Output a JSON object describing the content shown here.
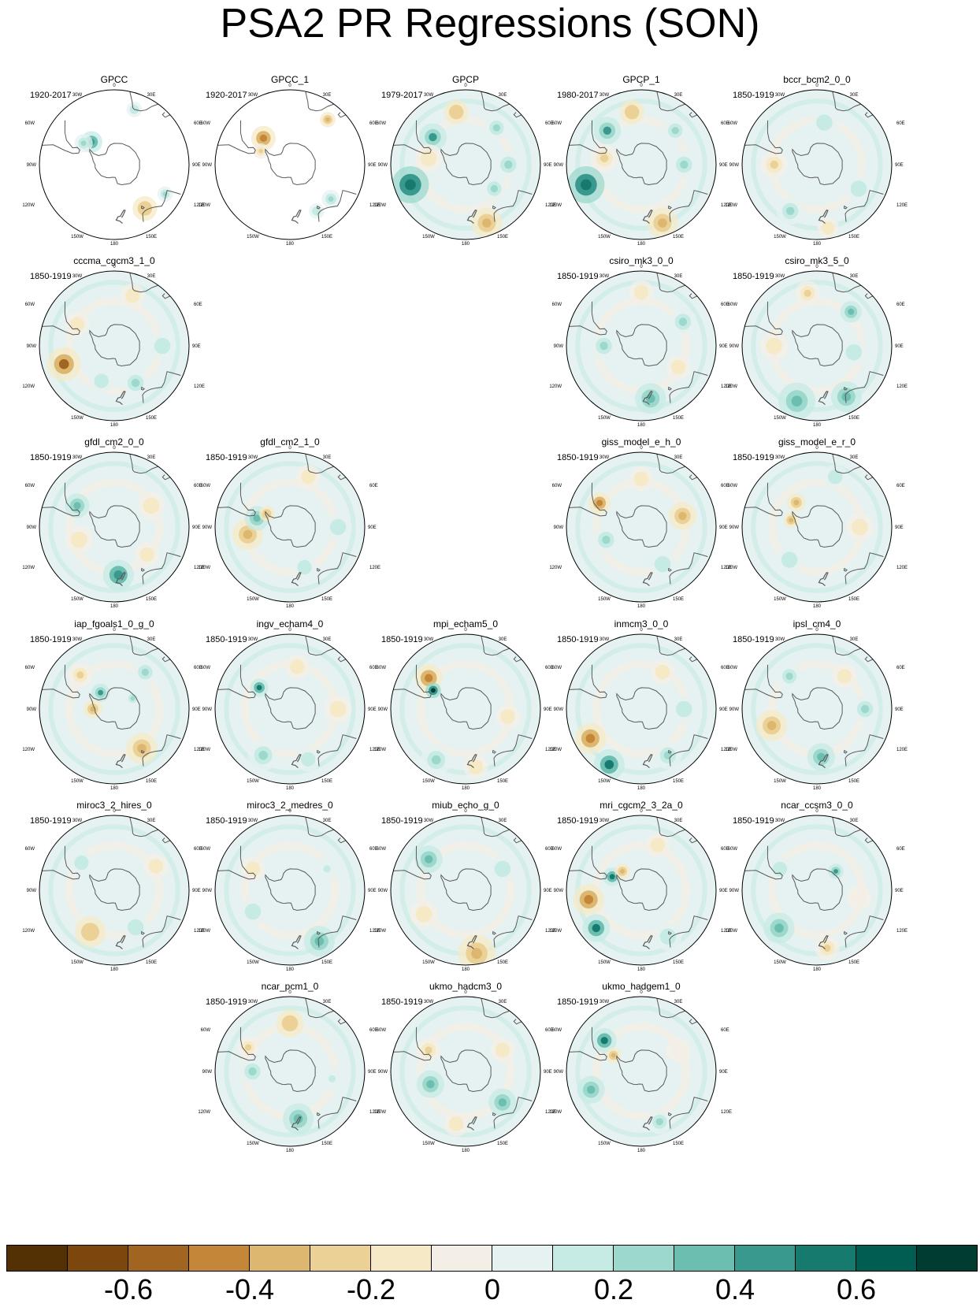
{
  "title": "PSA2 PR Regressions (SON)",
  "map_labels": {
    "top": "0",
    "upper_left": "30W",
    "upper_right": "30E",
    "left_upper": "60W",
    "right_upper": "60E",
    "left": "90W",
    "right": "90E",
    "left_lower": "120W",
    "right_lower": "120E",
    "bottom_left": "150W",
    "bottom_right": "150E",
    "bottom": "180"
  },
  "panels": [
    {
      "name": "GPCC",
      "period": "1920-2017",
      "row": 0,
      "col": 0,
      "coverage": "partial",
      "anomalies": [
        {
          "lon": -45,
          "lat": -60,
          "r": 7,
          "v": 0.45
        },
        {
          "lon": -55,
          "lat": -55,
          "r": 6,
          "v": 0.25
        },
        {
          "lon": 145,
          "lat": -40,
          "r": 8,
          "v": -0.3
        },
        {
          "lon": 120,
          "lat": -35,
          "r": 5,
          "v": 0.25
        },
        {
          "lon": 20,
          "lat": -35,
          "r": 5,
          "v": 0.15
        }
      ]
    },
    {
      "name": "GPCC_1",
      "period": "1920-2017",
      "row": 0,
      "col": 1,
      "coverage": "partial",
      "anomalies": [
        {
          "lon": -45,
          "lat": -55,
          "r": 8,
          "v": -0.45
        },
        {
          "lon": -65,
          "lat": -60,
          "r": 5,
          "v": -0.25
        },
        {
          "lon": 40,
          "lat": -35,
          "r": 5,
          "v": -0.35
        },
        {
          "lon": 130,
          "lat": -40,
          "r": 6,
          "v": 0.2
        },
        {
          "lon": 150,
          "lat": -40,
          "r": 5,
          "v": 0.15
        }
      ]
    },
    {
      "name": "GPCP",
      "period": "1979-2017",
      "row": 0,
      "col": 2,
      "anomalies": [
        {
          "lon": -110,
          "lat": -35,
          "r": 12,
          "v": 0.6
        },
        {
          "lon": -50,
          "lat": -50,
          "r": 9,
          "v": 0.4
        },
        {
          "lon": 160,
          "lat": -32,
          "r": 10,
          "v": -0.35
        },
        {
          "lon": -10,
          "lat": -40,
          "r": 8,
          "v": -0.3
        },
        {
          "lon": -80,
          "lat": -55,
          "r": 9,
          "v": -0.2
        },
        {
          "lon": 90,
          "lat": -50,
          "r": 9,
          "v": 0.2
        },
        {
          "lon": 40,
          "lat": -45,
          "r": 8,
          "v": 0.2
        },
        {
          "lon": 130,
          "lat": -55,
          "r": 8,
          "v": 0.2
        }
      ]
    },
    {
      "name": "GPCP_1",
      "period": "1980-2017",
      "row": 0,
      "col": 3,
      "anomalies": [
        {
          "lon": -110,
          "lat": -35,
          "r": 12,
          "v": 0.6
        },
        {
          "lon": -45,
          "lat": -45,
          "r": 9,
          "v": 0.4
        },
        {
          "lon": 160,
          "lat": -32,
          "r": 10,
          "v": -0.35
        },
        {
          "lon": -10,
          "lat": -40,
          "r": 8,
          "v": -0.3
        },
        {
          "lon": -80,
          "lat": -55,
          "r": 9,
          "v": -0.25
        },
        {
          "lon": 90,
          "lat": -50,
          "r": 9,
          "v": 0.2
        },
        {
          "lon": 45,
          "lat": -45,
          "r": 8,
          "v": 0.2
        }
      ]
    },
    {
      "name": "bccr_bcm2_0_0",
      "period": "1850-1919",
      "row": 0,
      "col": 4,
      "anomalies": [
        {
          "lon": -90,
          "lat": -50,
          "r": 9,
          "v": -0.25
        },
        {
          "lon": 10,
          "lat": -50,
          "r": 9,
          "v": 0.15
        },
        {
          "lon": 120,
          "lat": -45,
          "r": 9,
          "v": 0.15
        },
        {
          "lon": -150,
          "lat": -40,
          "r": 9,
          "v": 0.2
        },
        {
          "lon": 170,
          "lat": -30,
          "r": 7,
          "v": -0.15
        }
      ]
    },
    {
      "name": "cccma_cgcm3_1_0",
      "period": "1850-1919",
      "row": 1,
      "col": 0,
      "anomalies": [
        {
          "lon": -110,
          "lat": -40,
          "r": 11,
          "v": -0.55
        },
        {
          "lon": -60,
          "lat": -50,
          "r": 8,
          "v": -0.2
        },
        {
          "lon": 150,
          "lat": -50,
          "r": 9,
          "v": 0.2
        },
        {
          "lon": 20,
          "lat": -40,
          "r": 8,
          "v": -0.15
        },
        {
          "lon": 90,
          "lat": -45,
          "r": 9,
          "v": 0.15
        },
        {
          "lon": -160,
          "lat": -55,
          "r": 8,
          "v": 0.15
        }
      ]
    },
    {
      "name": "csiro_mk3_0_0",
      "period": "1850-1919",
      "row": 1,
      "col": 3,
      "anomalies": [
        {
          "lon": 170,
          "lat": -40,
          "r": 10,
          "v": 0.35
        },
        {
          "lon": -90,
          "lat": -55,
          "r": 9,
          "v": 0.2
        },
        {
          "lon": 60,
          "lat": -45,
          "r": 9,
          "v": 0.2
        },
        {
          "lon": 0,
          "lat": -40,
          "r": 8,
          "v": -0.15
        },
        {
          "lon": 120,
          "lat": -50,
          "r": 8,
          "v": -0.15
        }
      ]
    },
    {
      "name": "csiro_mk3_5_0",
      "period": "1850-1919",
      "row": 1,
      "col": 4,
      "anomalies": [
        {
          "lon": -160,
          "lat": -35,
          "r": 12,
          "v": 0.35
        },
        {
          "lon": 150,
          "lat": -35,
          "r": 10,
          "v": 0.3
        },
        {
          "lon": -10,
          "lat": -40,
          "r": 8,
          "v": -0.25
        },
        {
          "lon": 45,
          "lat": -45,
          "r": 7,
          "v": 0.3
        },
        {
          "lon": -90,
          "lat": -50,
          "r": 9,
          "v": -0.15
        },
        {
          "lon": 100,
          "lat": -55,
          "r": 9,
          "v": 0.15
        }
      ]
    },
    {
      "name": "gfdl_cm2_0_0",
      "period": "1850-1919",
      "row": 2,
      "col": 0,
      "anomalies": [
        {
          "lon": 175,
          "lat": -45,
          "r": 10,
          "v": 0.45
        },
        {
          "lon": -60,
          "lat": -50,
          "r": 8,
          "v": 0.3
        },
        {
          "lon": -110,
          "lat": -55,
          "r": 9,
          "v": -0.2
        },
        {
          "lon": 60,
          "lat": -50,
          "r": 9,
          "v": -0.15
        },
        {
          "lon": 130,
          "lat": -50,
          "r": 8,
          "v": -0.15
        }
      ]
    },
    {
      "name": "gfdl_cm2_1_0",
      "period": "1850-1919",
      "row": 2,
      "col": 1,
      "anomalies": [
        {
          "lon": -100,
          "lat": -50,
          "r": 10,
          "v": -0.35
        },
        {
          "lon": -75,
          "lat": -58,
          "r": 8,
          "v": 0.3
        },
        {
          "lon": -60,
          "lat": -65,
          "r": 5,
          "v": -0.3
        },
        {
          "lon": 90,
          "lat": -45,
          "r": 9,
          "v": 0.15
        },
        {
          "lon": 20,
          "lat": -40,
          "r": 8,
          "v": -0.15
        },
        {
          "lon": 160,
          "lat": -50,
          "r": 8,
          "v": 0.15
        }
      ]
    },
    {
      "name": "giss_model_e_h_0",
      "period": "1850-1919",
      "row": 2,
      "col": 3,
      "anomalies": [
        {
          "lon": 75,
          "lat": -50,
          "r": 9,
          "v": -0.35
        },
        {
          "lon": -60,
          "lat": -45,
          "r": 7,
          "v": -0.45
        },
        {
          "lon": -110,
          "lat": -55,
          "r": 9,
          "v": 0.2
        },
        {
          "lon": 150,
          "lat": -50,
          "r": 9,
          "v": 0.15
        },
        {
          "lon": 0,
          "lat": -45,
          "r": 8,
          "v": -0.15
        }
      ]
    },
    {
      "name": "giss_model_e_r_0",
      "period": "1850-1919",
      "row": 2,
      "col": 4,
      "anomalies": [
        {
          "lon": -75,
          "lat": -65,
          "r": 5,
          "v": -0.35
        },
        {
          "lon": -40,
          "lat": -60,
          "r": 6,
          "v": -0.4
        },
        {
          "lon": 90,
          "lat": -50,
          "r": 9,
          "v": -0.15
        },
        {
          "lon": -140,
          "lat": -50,
          "r": 9,
          "v": 0.15
        },
        {
          "lon": 20,
          "lat": -40,
          "r": 8,
          "v": 0.15
        }
      ]
    },
    {
      "name": "iap_fgoals1_0_g_0",
      "period": "1850-1919",
      "row": 3,
      "col": 0,
      "anomalies": [
        {
          "lon": 145,
          "lat": -45,
          "r": 10,
          "v": -0.35
        },
        {
          "lon": -90,
          "lat": -70,
          "r": 6,
          "v": -0.4
        },
        {
          "lon": -40,
          "lat": -70,
          "r": 6,
          "v": 0.4
        },
        {
          "lon": 60,
          "lat": -70,
          "r": 5,
          "v": 0.25
        },
        {
          "lon": -45,
          "lat": -45,
          "r": 8,
          "v": -0.25
        },
        {
          "lon": 40,
          "lat": -45,
          "r": 8,
          "v": 0.2
        }
      ]
    },
    {
      "name": "ingv_echam4_0",
      "period": "1850-1919",
      "row": 3,
      "col": 1,
      "anomalies": [
        {
          "lon": -55,
          "lat": -55,
          "r": 6,
          "v": 0.55
        },
        {
          "lon": -150,
          "lat": -40,
          "r": 10,
          "v": 0.25
        },
        {
          "lon": 90,
          "lat": -45,
          "r": 9,
          "v": -0.15
        },
        {
          "lon": 160,
          "lat": -40,
          "r": 8,
          "v": 0.15
        },
        {
          "lon": 10,
          "lat": -50,
          "r": 8,
          "v": -0.15
        }
      ]
    },
    {
      "name": "mpi_echam5_0",
      "period": "1850-1919",
      "row": 3,
      "col": 2,
      "anomalies": [
        {
          "lon": -50,
          "lat": -45,
          "r": 9,
          "v": -0.45
        },
        {
          "lon": -60,
          "lat": -55,
          "r": 5,
          "v": 0.7
        },
        {
          "lon": -150,
          "lat": -35,
          "r": 10,
          "v": 0.25
        },
        {
          "lon": 170,
          "lat": -35,
          "r": 8,
          "v": -0.2
        },
        {
          "lon": 100,
          "lat": -50,
          "r": 8,
          "v": -0.15
        }
      ]
    },
    {
      "name": "inmcm3_0_0",
      "period": "1850-1919",
      "row": 3,
      "col": 3,
      "anomalies": [
        {
          "lon": -120,
          "lat": -35,
          "r": 10,
          "v": -0.5
        },
        {
          "lon": -150,
          "lat": -30,
          "r": 10,
          "v": 0.5
        },
        {
          "lon": 150,
          "lat": -40,
          "r": 9,
          "v": 0.2
        },
        {
          "lon": 30,
          "lat": -50,
          "r": 8,
          "v": -0.15
        },
        {
          "lon": 90,
          "lat": -50,
          "r": 9,
          "v": 0.15
        }
      ]
    },
    {
      "name": "ipsl_cm4_0",
      "period": "1850-1919",
      "row": 3,
      "col": 4,
      "anomalies": [
        {
          "lon": -110,
          "lat": -45,
          "r": 10,
          "v": -0.35
        },
        {
          "lon": 175,
          "lat": -45,
          "r": 9,
          "v": 0.3
        },
        {
          "lon": -40,
          "lat": -50,
          "r": 8,
          "v": 0.25
        },
        {
          "lon": 90,
          "lat": -45,
          "r": 9,
          "v": 0.2
        },
        {
          "lon": 40,
          "lat": -50,
          "r": 8,
          "v": -0.15
        }
      ]
    },
    {
      "name": "miroc3_2_hires_0",
      "period": "1850-1919",
      "row": 4,
      "col": 0,
      "anomalies": [
        {
          "lon": -150,
          "lat": -45,
          "r": 10,
          "v": -0.3
        },
        {
          "lon": -50,
          "lat": -50,
          "r": 8,
          "v": 0.15
        },
        {
          "lon": 150,
          "lat": -50,
          "r": 9,
          "v": 0.15
        },
        {
          "lon": 60,
          "lat": -45,
          "r": 8,
          "v": -0.15
        }
      ]
    },
    {
      "name": "miroc3_2_medres_0",
      "period": "1850-1919",
      "row": 4,
      "col": 1,
      "anomalies": [
        {
          "lon": 150,
          "lat": -35,
          "r": 10,
          "v": 0.3
        },
        {
          "lon": -60,
          "lat": -50,
          "r": 8,
          "v": -0.15
        },
        {
          "lon": -120,
          "lat": -50,
          "r": 9,
          "v": 0.15
        },
        {
          "lon": 60,
          "lat": -50,
          "r": 8,
          "v": 0.1
        }
      ]
    },
    {
      "name": "miub_echo_g_0",
      "period": "1850-1919",
      "row": 4,
      "col": 2,
      "anomalies": [
        {
          "lon": 170,
          "lat": -30,
          "r": 12,
          "v": -0.35
        },
        {
          "lon": -50,
          "lat": -45,
          "r": 9,
          "v": 0.3
        },
        {
          "lon": -120,
          "lat": -45,
          "r": 9,
          "v": -0.2
        },
        {
          "lon": 60,
          "lat": -50,
          "r": 9,
          "v": 0.15
        }
      ]
    },
    {
      "name": "mri_cgcm2_3_2a_0",
      "period": "1850-1919",
      "row": 4,
      "col": 3,
      "anomalies": [
        {
          "lon": -100,
          "lat": -40,
          "r": 10,
          "v": -0.45
        },
        {
          "lon": -130,
          "lat": -35,
          "r": 9,
          "v": 0.5
        },
        {
          "lon": -65,
          "lat": -60,
          "r": 6,
          "v": 0.5
        },
        {
          "lon": -45,
          "lat": -65,
          "r": 5,
          "v": -0.4
        },
        {
          "lon": 150,
          "lat": -40,
          "r": 9,
          "v": 0.15
        },
        {
          "lon": 20,
          "lat": -45,
          "r": 8,
          "v": -0.15
        }
      ]
    },
    {
      "name": "ncar_ccsm3_0_0",
      "period": "1850-1919",
      "row": 4,
      "col": 4,
      "anomalies": [
        {
          "lon": -135,
          "lat": -40,
          "r": 10,
          "v": 0.35
        },
        {
          "lon": 170,
          "lat": -35,
          "r": 8,
          "v": -0.25
        },
        {
          "lon": 45,
          "lat": -65,
          "r": 5,
          "v": 0.4
        },
        {
          "lon": -60,
          "lat": -50,
          "r": 8,
          "v": 0.15
        },
        {
          "lon": 100,
          "lat": -50,
          "r": 8,
          "v": -0.1
        }
      ]
    },
    {
      "name": "ncar_pcm1_0",
      "period": "1850-1919",
      "row": 5,
      "col": 1,
      "anomalies": [
        {
          "lon": 0,
          "lat": -45,
          "r": 9,
          "v": -0.3
        },
        {
          "lon": -60,
          "lat": -45,
          "r": 7,
          "v": -0.25
        },
        {
          "lon": 170,
          "lat": -45,
          "r": 10,
          "v": 0.3
        },
        {
          "lon": -90,
          "lat": -55,
          "r": 9,
          "v": 0.2
        },
        {
          "lon": 100,
          "lat": -50,
          "r": 8,
          "v": 0.1
        }
      ]
    },
    {
      "name": "ukmo_hadcm3_0",
      "period": "1850-1919",
      "row": 5,
      "col": 2,
      "anomalies": [
        {
          "lon": -110,
          "lat": -55,
          "r": 9,
          "v": 0.3
        },
        {
          "lon": 130,
          "lat": -45,
          "r": 9,
          "v": 0.3
        },
        {
          "lon": -60,
          "lat": -50,
          "r": 8,
          "v": -0.25
        },
        {
          "lon": 60,
          "lat": -50,
          "r": 8,
          "v": -0.15
        },
        {
          "lon": -170,
          "lat": -40,
          "r": 8,
          "v": -0.15
        }
      ]
    },
    {
      "name": "ukmo_hadgem1_0",
      "period": "1850-1919",
      "row": 5,
      "col": 3,
      "anomalies": [
        {
          "lon": -50,
          "lat": -45,
          "r": 8,
          "v": 0.5
        },
        {
          "lon": -60,
          "lat": -60,
          "r": 5,
          "v": -0.35
        },
        {
          "lon": -110,
          "lat": -40,
          "r": 9,
          "v": 0.3
        },
        {
          "lon": 160,
          "lat": -40,
          "r": 8,
          "v": 0.2
        },
        {
          "lon": 60,
          "lat": -50,
          "r": 8,
          "v": -0.1
        }
      ]
    }
  ],
  "colorbar": {
    "colors": [
      "#543005",
      "#7c470c",
      "#a26421",
      "#c48639",
      "#ddb66f",
      "#ebd196",
      "#f6e9c6",
      "#f4efe6",
      "#e5f2f1",
      "#c6ebe5",
      "#9cd8cc",
      "#6cbeb1",
      "#3a998f",
      "#177a6f",
      "#015d52",
      "#003c30"
    ],
    "tick_labels": [
      "-0.6",
      "-0.4",
      "-0.2",
      "0",
      "0.2",
      "0.4",
      "0.6"
    ],
    "tick_values": [
      -0.6,
      -0.4,
      -0.2,
      0,
      0.2,
      0.4,
      0.6
    ],
    "vmin": -0.8,
    "vmax": 0.8
  },
  "colors": {
    "coast": "#5a5a5a",
    "outline": "#000000",
    "background": "#ffffff"
  }
}
